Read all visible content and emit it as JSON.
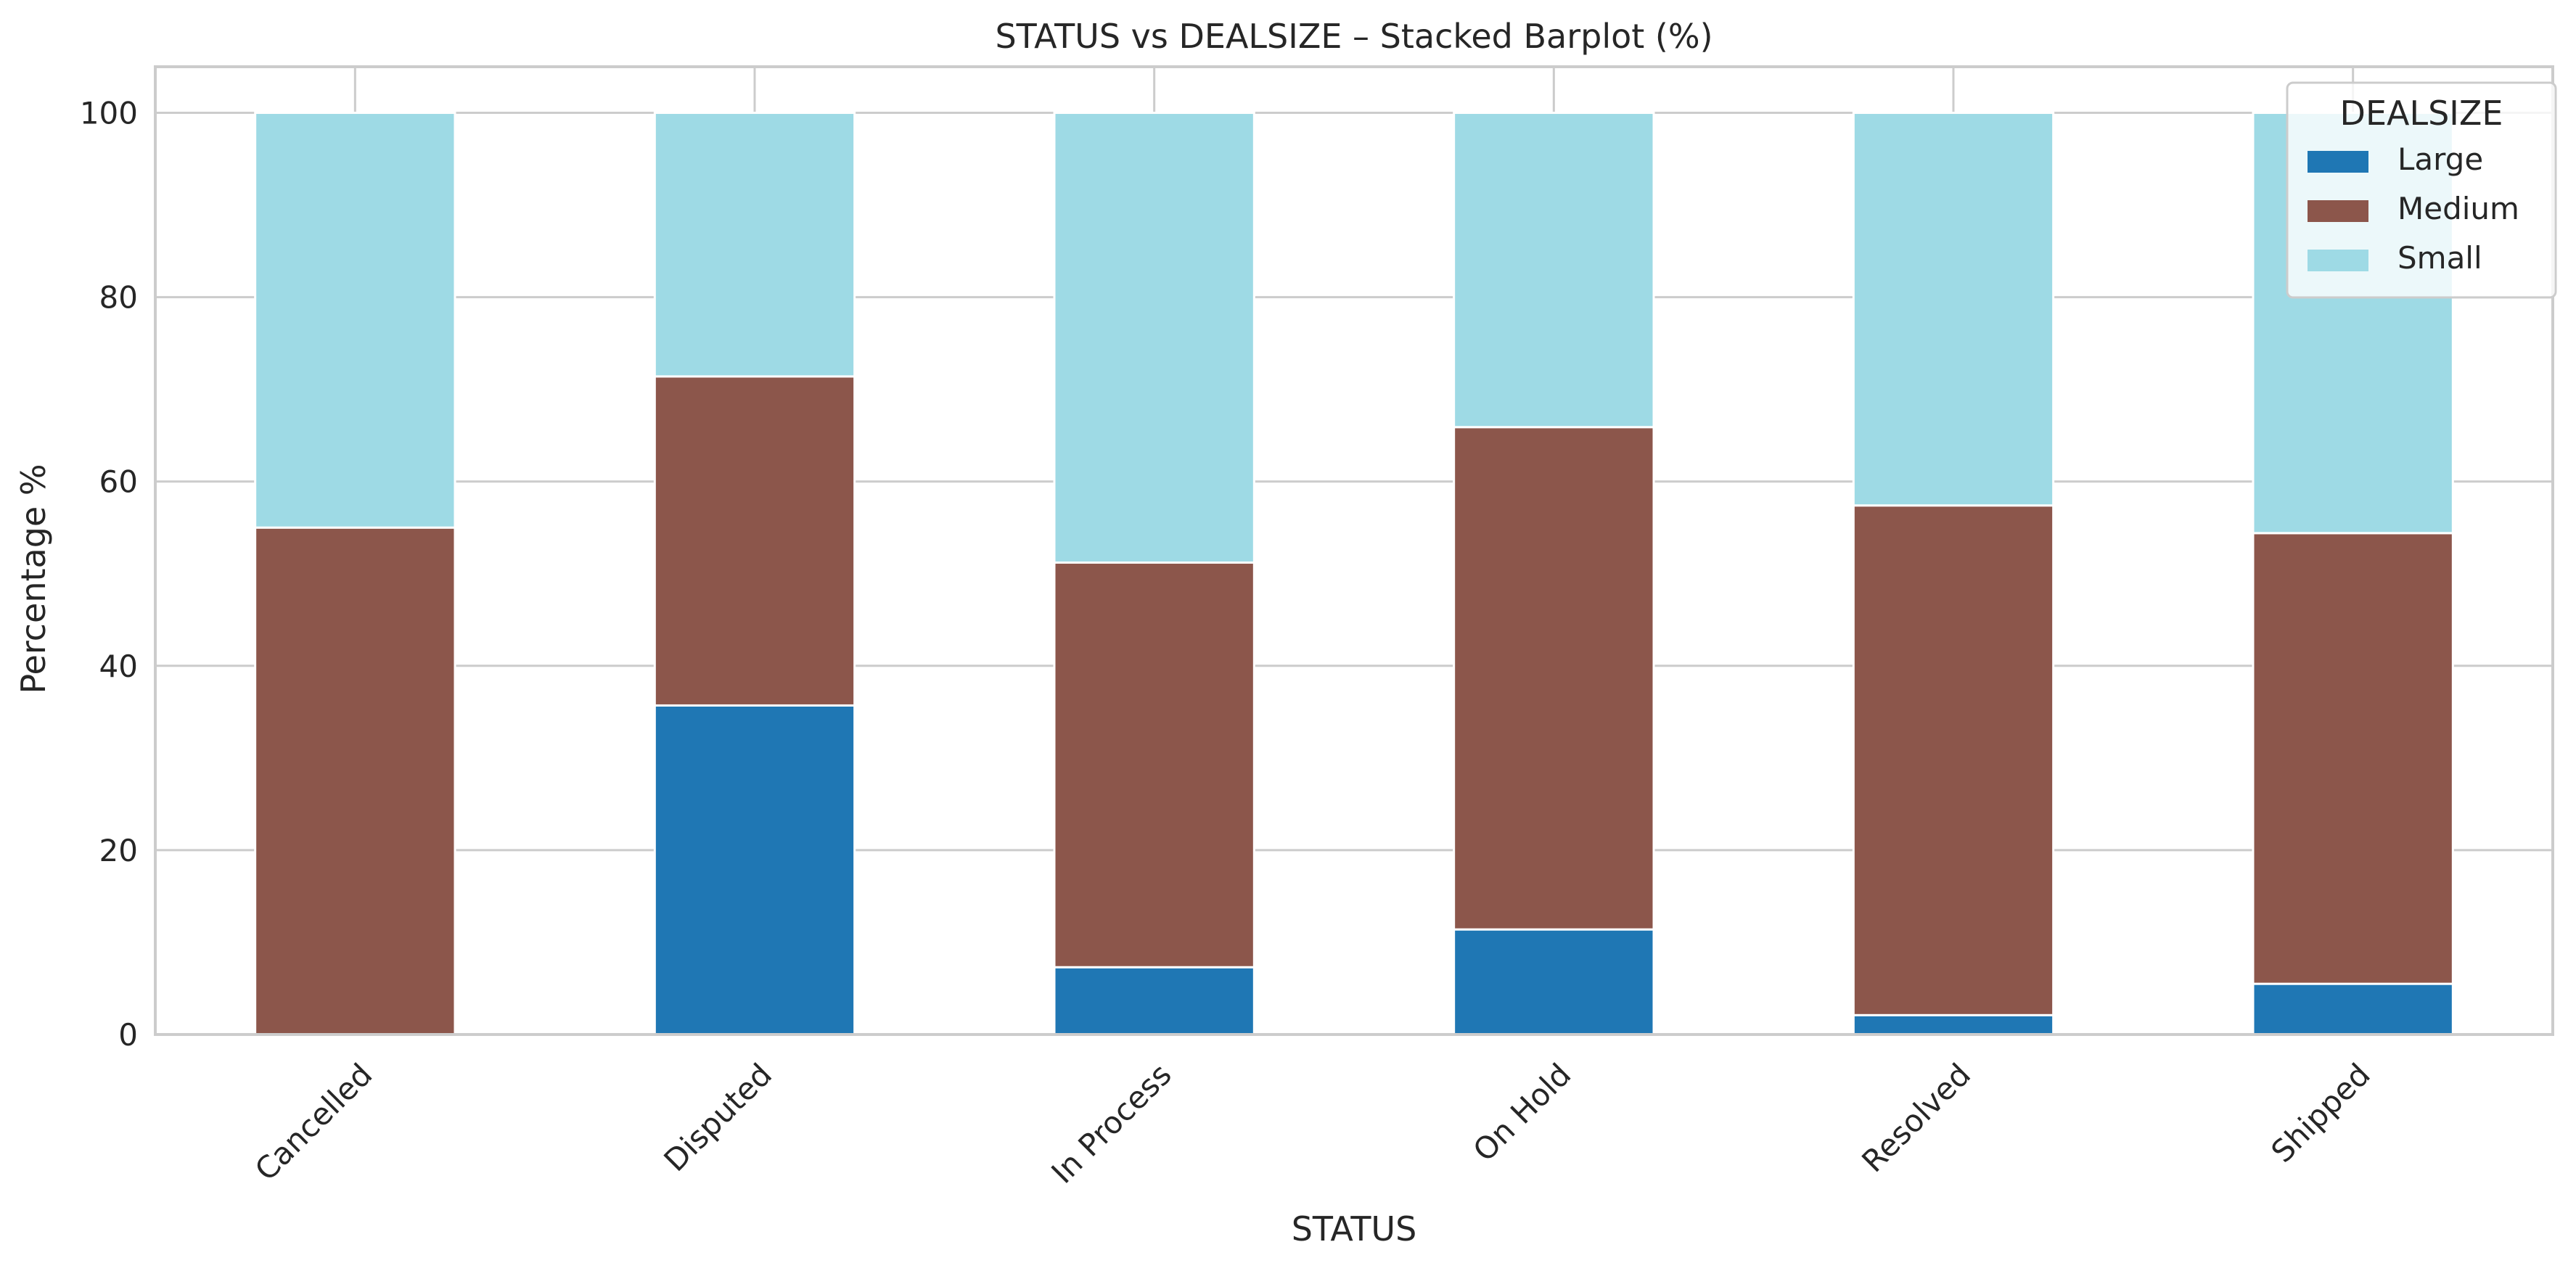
{
  "chart_data": {
    "type": "bar",
    "stacked": true,
    "title": "STATUS vs DEALSIZE – Stacked Barplot (%)",
    "xlabel": "STATUS",
    "ylabel": "Percentage %",
    "ylim": [
      0,
      105
    ],
    "yticks": [
      0,
      20,
      40,
      60,
      80,
      100
    ],
    "grid": true,
    "legend": {
      "title": "DEALSIZE",
      "placement": "top-right"
    },
    "categories": [
      "Cancelled",
      "Disputed",
      "In Process",
      "On Hold",
      "Resolved",
      "Shipped"
    ],
    "series": [
      {
        "name": "Large",
        "color": "#1f77b4",
        "values": [
          0.0,
          35.7,
          7.3,
          11.4,
          2.1,
          5.5
        ]
      },
      {
        "name": "Medium",
        "color": "#8c564b",
        "values": [
          55.0,
          35.7,
          43.9,
          54.5,
          55.3,
          48.9
        ]
      },
      {
        "name": "Small",
        "color": "#9edae5",
        "values": [
          45.0,
          28.6,
          48.8,
          34.1,
          42.6,
          45.6
        ]
      }
    ]
  }
}
